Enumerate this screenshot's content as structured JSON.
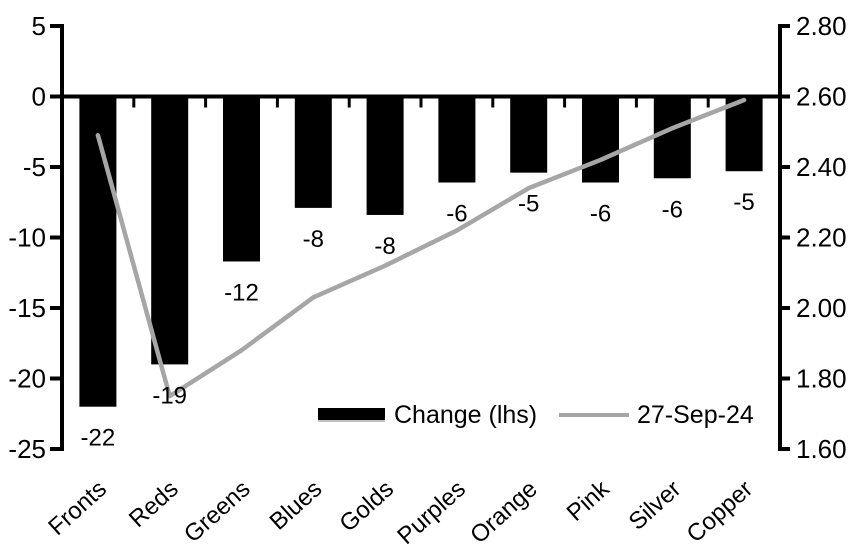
{
  "chart_data": {
    "type": "combo-bar-line",
    "title": "",
    "categories": [
      "Fronts",
      "Reds",
      "Greens",
      "Blues",
      "Golds",
      "Purples",
      "Orange",
      "Pink",
      "Silver",
      "Copper"
    ],
    "series": [
      {
        "name": "Change (lhs)",
        "type": "bar",
        "axis": "left",
        "color": "#000000",
        "values": [
          -22,
          -19,
          -12,
          -8,
          -8,
          -6,
          -5,
          -6,
          -6,
          -5
        ],
        "render_values": [
          -22,
          -19,
          -11.7,
          -7.9,
          -8.4,
          -6.1,
          -5.4,
          -6.1,
          -5.8,
          -5.3
        ],
        "data_labels": [
          "-22",
          "-19",
          "-12",
          "-8",
          "-8",
          "-6",
          "-5",
          "-6",
          "-6",
          "-5"
        ]
      },
      {
        "name": "27-Sep-24",
        "type": "line",
        "axis": "right",
        "color": "#a6a6a6",
        "values": [
          2.49,
          1.75,
          1.88,
          2.03,
          2.12,
          2.22,
          2.34,
          2.42,
          2.51,
          2.59
        ]
      }
    ],
    "left_axis": {
      "min": -25,
      "max": 5,
      "tick_step": 5,
      "ticks": [
        "5",
        "0",
        "-5",
        "-10",
        "-15",
        "-20",
        "-25"
      ]
    },
    "right_axis": {
      "min": 1.6,
      "max": 2.8,
      "tick_step": 0.2,
      "ticks": [
        "2.80",
        "2.60",
        "2.40",
        "2.20",
        "2.00",
        "1.80",
        "1.60"
      ]
    },
    "legend": {
      "position": "bottom-inside",
      "items": [
        {
          "label": "Change (lhs)",
          "marker": "bar",
          "color": "#000000"
        },
        {
          "label": "27-Sep-24",
          "marker": "line",
          "color": "#a6a6a6"
        }
      ]
    },
    "grid": false,
    "background": "#ffffff"
  }
}
